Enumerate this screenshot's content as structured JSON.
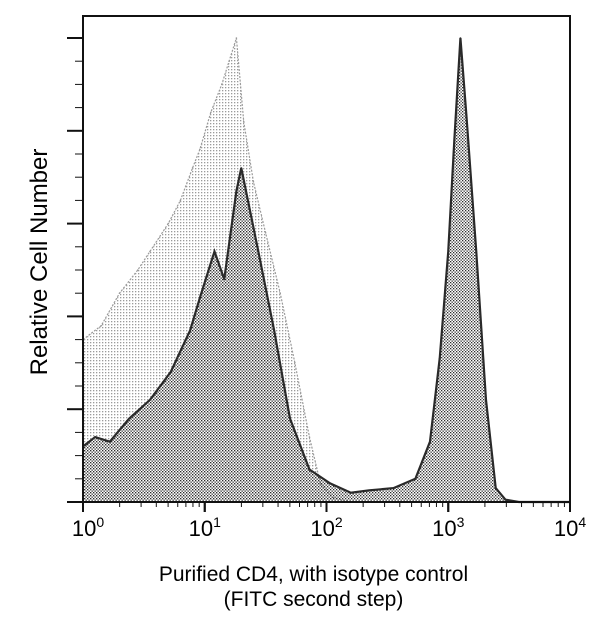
{
  "chart_data": {
    "type": "line",
    "title": "",
    "xlabel": "Purified CD4, with isotype control",
    "xlabel_line2": "(FITC second step)",
    "ylabel": "Relative Cell Number",
    "xscale": "log",
    "xlim_log10": [
      0,
      4
    ],
    "ylim": [
      0,
      104
    ],
    "x_tick_labels": [
      {
        "base": "10",
        "exp": "0"
      },
      {
        "base": "10",
        "exp": "1"
      },
      {
        "base": "10",
        "exp": "2"
      },
      {
        "base": "10",
        "exp": "3"
      },
      {
        "base": "10",
        "exp": "4"
      }
    ],
    "y_major_ticks": [
      0,
      20,
      40,
      60,
      80,
      100
    ],
    "grid": false,
    "series": [
      {
        "name": "Isotype control",
        "color": "#9a9a9a",
        "x_log10": [
          0,
          0.15,
          0.3,
          0.45,
          0.55,
          0.7,
          0.8,
          0.9,
          0.96,
          1.05,
          1.14,
          1.2,
          1.26,
          1.32,
          1.4,
          1.5,
          1.62,
          1.74,
          1.86,
          1.95,
          2.05,
          2.2
        ],
        "values": [
          35,
          38,
          45,
          50,
          54,
          60,
          65,
          72,
          76,
          84,
          90,
          95,
          100,
          82,
          69,
          58,
          45,
          30,
          14,
          4,
          1,
          0
        ]
      },
      {
        "name": "CD4",
        "color": "#2a2a2a",
        "x_log10": [
          0,
          0.1,
          0.22,
          0.38,
          0.55,
          0.72,
          0.88,
          0.96,
          1.08,
          1.16,
          1.26,
          1.3,
          1.44,
          1.57,
          1.7,
          1.86,
          2.03,
          2.2,
          2.35,
          2.55,
          2.73,
          2.85,
          2.93,
          3.0,
          3.05,
          3.1,
          3.15,
          3.23,
          3.31,
          3.39,
          3.47,
          3.58,
          4.0
        ],
        "values": [
          12,
          14,
          13,
          18,
          22,
          28,
          37,
          44,
          54,
          48,
          67,
          72,
          54,
          37,
          18,
          7,
          4,
          2,
          2.5,
          3,
          5,
          13,
          31,
          54,
          78,
          100,
          83,
          54,
          22,
          3,
          0.5,
          0,
          0
        ]
      }
    ]
  }
}
